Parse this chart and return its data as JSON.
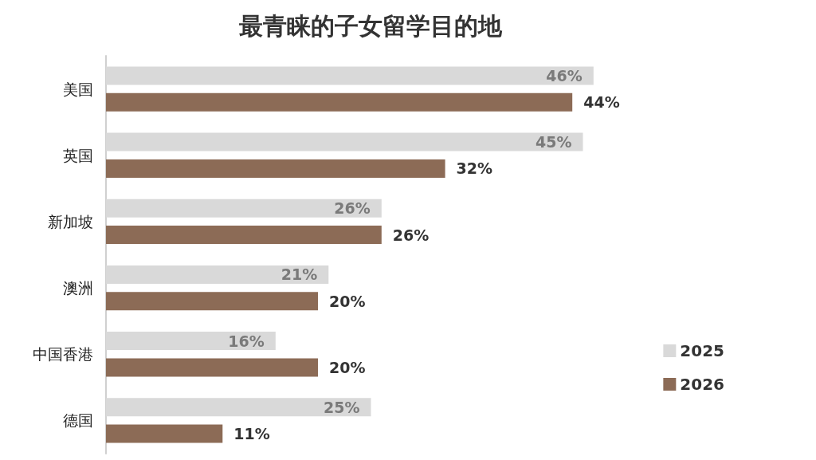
{
  "chart_data": {
    "type": "bar",
    "orientation": "horizontal",
    "title": "最青睐的子女留学目的地",
    "categories": [
      "美国",
      "英国",
      "新加坡",
      "澳洲",
      "中国香港",
      "德国"
    ],
    "series": [
      {
        "name": "2025",
        "color": "#d9d9d9",
        "values": [
          46,
          45,
          26,
          21,
          16,
          25
        ],
        "value_labels": [
          "46%",
          "45%",
          "26%",
          "21%",
          "16%",
          "25%"
        ]
      },
      {
        "name": "2026",
        "color": "#8c6b56",
        "values": [
          44,
          32,
          26,
          20,
          20,
          11
        ],
        "value_labels": [
          "44%",
          "32%",
          "26%",
          "20%",
          "20%",
          "11%"
        ]
      }
    ],
    "tick_labels": "y",
    "grid": false,
    "legend": "right"
  }
}
